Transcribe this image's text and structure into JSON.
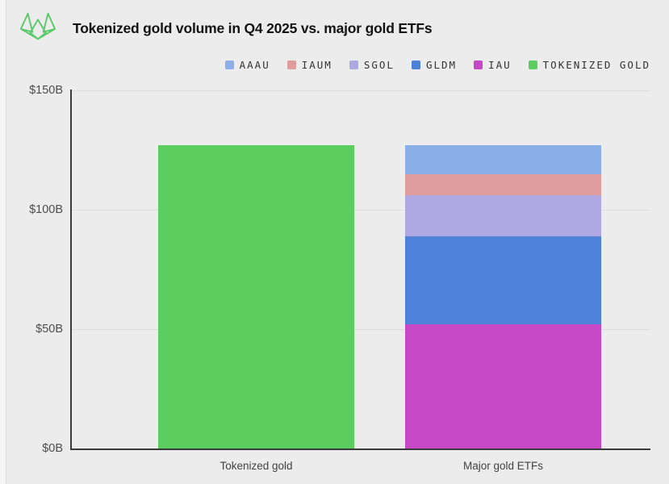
{
  "header": {
    "title": "Tokenized gold volume in Q4 2025 vs. major gold ETFs"
  },
  "colors": {
    "background": "#ececec",
    "axis": "#3b3b3b",
    "gridline": "#dcdddd",
    "title_text": "#141414",
    "tick_text": "#4d4d4d",
    "category_text": "#424242",
    "legend_text": "#333333",
    "logo_green": "#5bc96a"
  },
  "icons": {
    "logo": "green-geometric-origami-logo"
  },
  "chart_data": {
    "type": "bar",
    "stacked": true,
    "title": "Tokenized gold volume in Q4 2025 vs. major gold ETFs",
    "categories": [
      "Tokenized gold",
      "Major gold ETFs"
    ],
    "series": [
      {
        "name": "AAAU",
        "color": "#8bb0e9",
        "values": [
          0,
          12
        ]
      },
      {
        "name": "IAUM",
        "color": "#df9c9c",
        "values": [
          0,
          9
        ]
      },
      {
        "name": "SGOL",
        "color": "#aea7e2",
        "values": [
          0,
          17
        ]
      },
      {
        "name": "GLDM",
        "color": "#4e82d8",
        "values": [
          0,
          37
        ]
      },
      {
        "name": "IAU",
        "color": "#c748c7",
        "values": [
          0,
          52
        ]
      },
      {
        "name": "TOKENIZED GOLD",
        "color": "#5cce60",
        "values": [
          127,
          0
        ]
      }
    ],
    "totals": [
      127,
      127
    ],
    "xlabel": "",
    "ylabel": "",
    "ylim": [
      0,
      150
    ],
    "yticks": [
      {
        "value": 0,
        "label": "$0B"
      },
      {
        "value": 50,
        "label": "$50B"
      },
      {
        "value": 100,
        "label": "$100B"
      },
      {
        "value": 150,
        "label": "$150B"
      }
    ],
    "legend_position": "top-right",
    "grid": true
  }
}
